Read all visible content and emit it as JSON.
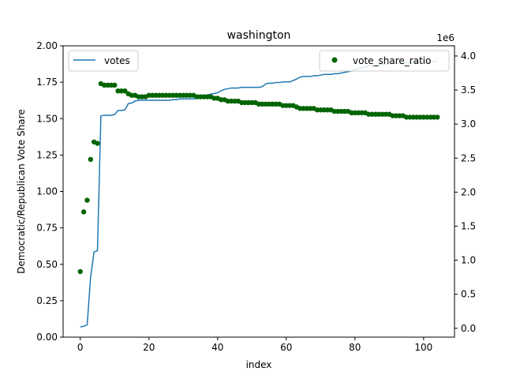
{
  "chart_data": {
    "type": "line+scatter",
    "title": "washington",
    "xlabel": "index",
    "ylabel": "Democratic/Republican Vote Share",
    "y2_offset_label": "1e6",
    "xlim": [
      -5,
      109
    ],
    "ylim": [
      0,
      2.0
    ],
    "y2lim": [
      -0.13,
      4.15
    ],
    "x_ticks": [
      0,
      20,
      40,
      60,
      80,
      100
    ],
    "y_ticks": [
      0.0,
      0.25,
      0.5,
      0.75,
      1.0,
      1.25,
      1.5,
      1.75,
      2.0
    ],
    "y_tick_labels": [
      "0.00",
      "0.25",
      "0.50",
      "0.75",
      "1.00",
      "1.25",
      "1.50",
      "1.75",
      "2.00"
    ],
    "y2_ticks": [
      0.0,
      0.5,
      1.0,
      1.5,
      2.0,
      2.5,
      3.0,
      3.5,
      4.0
    ],
    "y2_tick_labels": [
      "0.0",
      "0.5",
      "1.0",
      "1.5",
      "2.0",
      "2.5",
      "3.0",
      "3.5",
      "4.0"
    ],
    "legend_left": {
      "label": "votes",
      "placement": "upper-left"
    },
    "legend_right": {
      "label": "vote_share_ratio",
      "placement": "upper-right"
    },
    "colors": {
      "votes": "#1f77b4",
      "vote_share_ratio": "#006400"
    },
    "series": [
      {
        "name": "votes",
        "axis": "y2",
        "kind": "line",
        "x": [
          0,
          1,
          2,
          3,
          4,
          5,
          6,
          7,
          8,
          9,
          10,
          11,
          12,
          13,
          14,
          15,
          16,
          17,
          18,
          19,
          20,
          21,
          22,
          23,
          24,
          25,
          26,
          27,
          28,
          29,
          30,
          31,
          32,
          33,
          34,
          35,
          36,
          37,
          38,
          39,
          40,
          41,
          42,
          43,
          44,
          45,
          46,
          47,
          48,
          49,
          50,
          51,
          52,
          53,
          54,
          55,
          56,
          57,
          58,
          59,
          60,
          61,
          62,
          63,
          64,
          65,
          66,
          67,
          68,
          69,
          70,
          71,
          72,
          73,
          74,
          75,
          76,
          77,
          78,
          79,
          80,
          81,
          82,
          83,
          84,
          85,
          86,
          87,
          88,
          89,
          90,
          91,
          92,
          93,
          94,
          95,
          96,
          97,
          98,
          99,
          100,
          101,
          102,
          103,
          104
        ],
        "values": [
          0.02,
          0.03,
          0.05,
          0.75,
          1.12,
          1.14,
          3.12,
          3.13,
          3.13,
          3.13,
          3.14,
          3.2,
          3.2,
          3.21,
          3.3,
          3.31,
          3.34,
          3.35,
          3.35,
          3.35,
          3.35,
          3.35,
          3.35,
          3.35,
          3.35,
          3.35,
          3.35,
          3.36,
          3.36,
          3.37,
          3.37,
          3.37,
          3.37,
          3.37,
          3.38,
          3.4,
          3.41,
          3.43,
          3.44,
          3.45,
          3.46,
          3.49,
          3.51,
          3.52,
          3.53,
          3.53,
          3.53,
          3.54,
          3.54,
          3.54,
          3.54,
          3.54,
          3.54,
          3.55,
          3.59,
          3.6,
          3.6,
          3.61,
          3.61,
          3.62,
          3.62,
          3.62,
          3.64,
          3.66,
          3.69,
          3.7,
          3.7,
          3.7,
          3.71,
          3.71,
          3.72,
          3.73,
          3.73,
          3.73,
          3.74,
          3.74,
          3.75,
          3.76,
          3.77,
          3.78,
          3.8,
          3.82,
          3.83,
          3.84,
          3.86,
          3.86,
          3.86,
          3.87,
          3.88,
          3.88,
          3.89,
          3.89,
          3.89,
          3.89,
          3.9,
          3.9,
          3.9,
          3.9,
          3.91,
          3.91,
          3.91,
          3.92,
          3.92,
          3.92,
          3.92
        ]
      },
      {
        "name": "vote_share_ratio",
        "axis": "y",
        "kind": "scatter",
        "x": [
          0,
          1,
          2,
          3,
          4,
          5,
          6,
          7,
          8,
          9,
          10,
          11,
          12,
          13,
          14,
          15,
          16,
          17,
          18,
          19,
          20,
          21,
          22,
          23,
          24,
          25,
          26,
          27,
          28,
          29,
          30,
          31,
          32,
          33,
          34,
          35,
          36,
          37,
          38,
          39,
          40,
          41,
          42,
          43,
          44,
          45,
          46,
          47,
          48,
          49,
          50,
          51,
          52,
          53,
          54,
          55,
          56,
          57,
          58,
          59,
          60,
          61,
          62,
          63,
          64,
          65,
          66,
          67,
          68,
          69,
          70,
          71,
          72,
          73,
          74,
          75,
          76,
          77,
          78,
          79,
          80,
          81,
          82,
          83,
          84,
          85,
          86,
          87,
          88,
          89,
          90,
          91,
          92,
          93,
          94,
          95,
          96,
          97,
          98,
          99,
          100,
          101,
          102,
          103,
          104
        ],
        "values": [
          0.45,
          0.86,
          0.94,
          1.22,
          1.34,
          1.33,
          1.74,
          1.73,
          1.73,
          1.73,
          1.73,
          1.69,
          1.69,
          1.69,
          1.67,
          1.66,
          1.66,
          1.65,
          1.65,
          1.65,
          1.66,
          1.66,
          1.66,
          1.66,
          1.66,
          1.66,
          1.66,
          1.66,
          1.66,
          1.66,
          1.66,
          1.66,
          1.66,
          1.66,
          1.65,
          1.65,
          1.65,
          1.65,
          1.65,
          1.64,
          1.64,
          1.63,
          1.63,
          1.62,
          1.62,
          1.62,
          1.62,
          1.61,
          1.61,
          1.61,
          1.61,
          1.61,
          1.6,
          1.6,
          1.6,
          1.6,
          1.6,
          1.6,
          1.6,
          1.59,
          1.59,
          1.59,
          1.59,
          1.58,
          1.57,
          1.57,
          1.57,
          1.57,
          1.57,
          1.56,
          1.56,
          1.56,
          1.56,
          1.56,
          1.55,
          1.55,
          1.55,
          1.55,
          1.55,
          1.54,
          1.54,
          1.54,
          1.54,
          1.54,
          1.53,
          1.53,
          1.53,
          1.53,
          1.53,
          1.53,
          1.53,
          1.52,
          1.52,
          1.52,
          1.52,
          1.51,
          1.51,
          1.51,
          1.51,
          1.51,
          1.51,
          1.51,
          1.51,
          1.51,
          1.51
        ]
      }
    ]
  }
}
